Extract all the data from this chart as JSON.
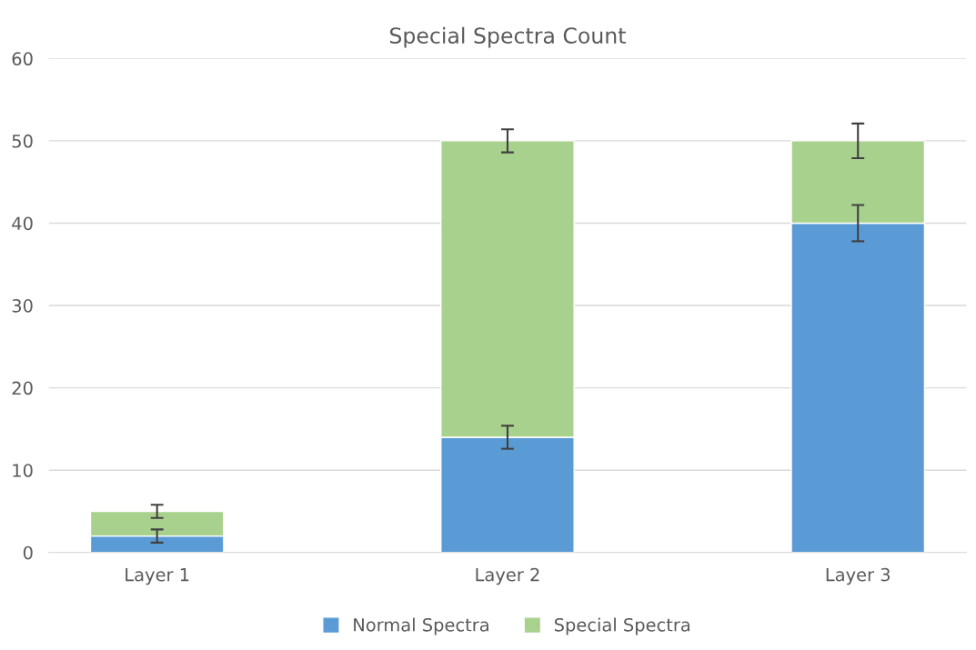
{
  "chart_data": {
    "type": "bar",
    "title": "Special Spectra Count",
    "categories": [
      "Layer 1",
      "Layer 2",
      "Layer 3"
    ],
    "stacked": true,
    "series": [
      {
        "name": "Normal Spectra",
        "color": "#5b9bd5",
        "values": [
          2,
          14,
          40
        ],
        "errors": [
          0.8,
          1.4,
          2.2
        ]
      },
      {
        "name": "Special Spectra",
        "color": "#a9d18e",
        "values": [
          3,
          36,
          10
        ],
        "errors": [
          0.8,
          1.4,
          2.1
        ]
      }
    ],
    "ylim": [
      0,
      60
    ],
    "yticks": [
      0,
      10,
      20,
      30,
      40,
      50,
      60
    ],
    "grid": "y",
    "legend": "bottom"
  }
}
